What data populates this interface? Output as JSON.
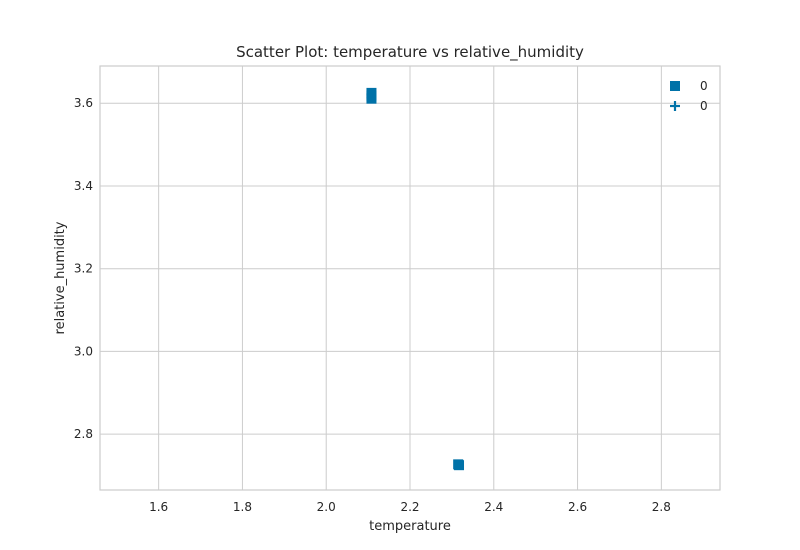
{
  "chart_data": {
    "type": "scatter",
    "title": "Scatter Plot: temperature vs relative_humidity",
    "xlabel": "temperature",
    "ylabel": "relative_humidity",
    "xlim": [
      1.46,
      2.94
    ],
    "ylim": [
      2.665,
      3.69
    ],
    "xticks": [
      1.6,
      1.8,
      2.0,
      2.2,
      2.4,
      2.6,
      2.8
    ],
    "xtick_labels": [
      "1.6",
      "1.8",
      "2.0",
      "2.2",
      "2.4",
      "2.6",
      "2.8"
    ],
    "yticks": [
      2.8,
      3.0,
      3.2,
      3.4,
      3.6
    ],
    "ytick_labels": [
      "2.8",
      "3.0",
      "3.2",
      "3.4",
      "3.6"
    ],
    "grid": true,
    "legend_position": "top-right",
    "color": "#0072a8",
    "series": [
      {
        "name": "0",
        "marker": "square",
        "points": [
          {
            "x": 2.108,
            "y": 3.625
          },
          {
            "x": 2.108,
            "y": 3.618
          },
          {
            "x": 2.108,
            "y": 3.611
          },
          {
            "x": 2.315,
            "y": 2.727
          },
          {
            "x": 2.317,
            "y": 2.725
          }
        ]
      },
      {
        "name": "0",
        "marker": "plus",
        "points": [
          {
            "x": 2.108,
            "y": 3.622
          },
          {
            "x": 2.108,
            "y": 3.612
          },
          {
            "x": 2.316,
            "y": 2.726
          }
        ]
      }
    ]
  }
}
